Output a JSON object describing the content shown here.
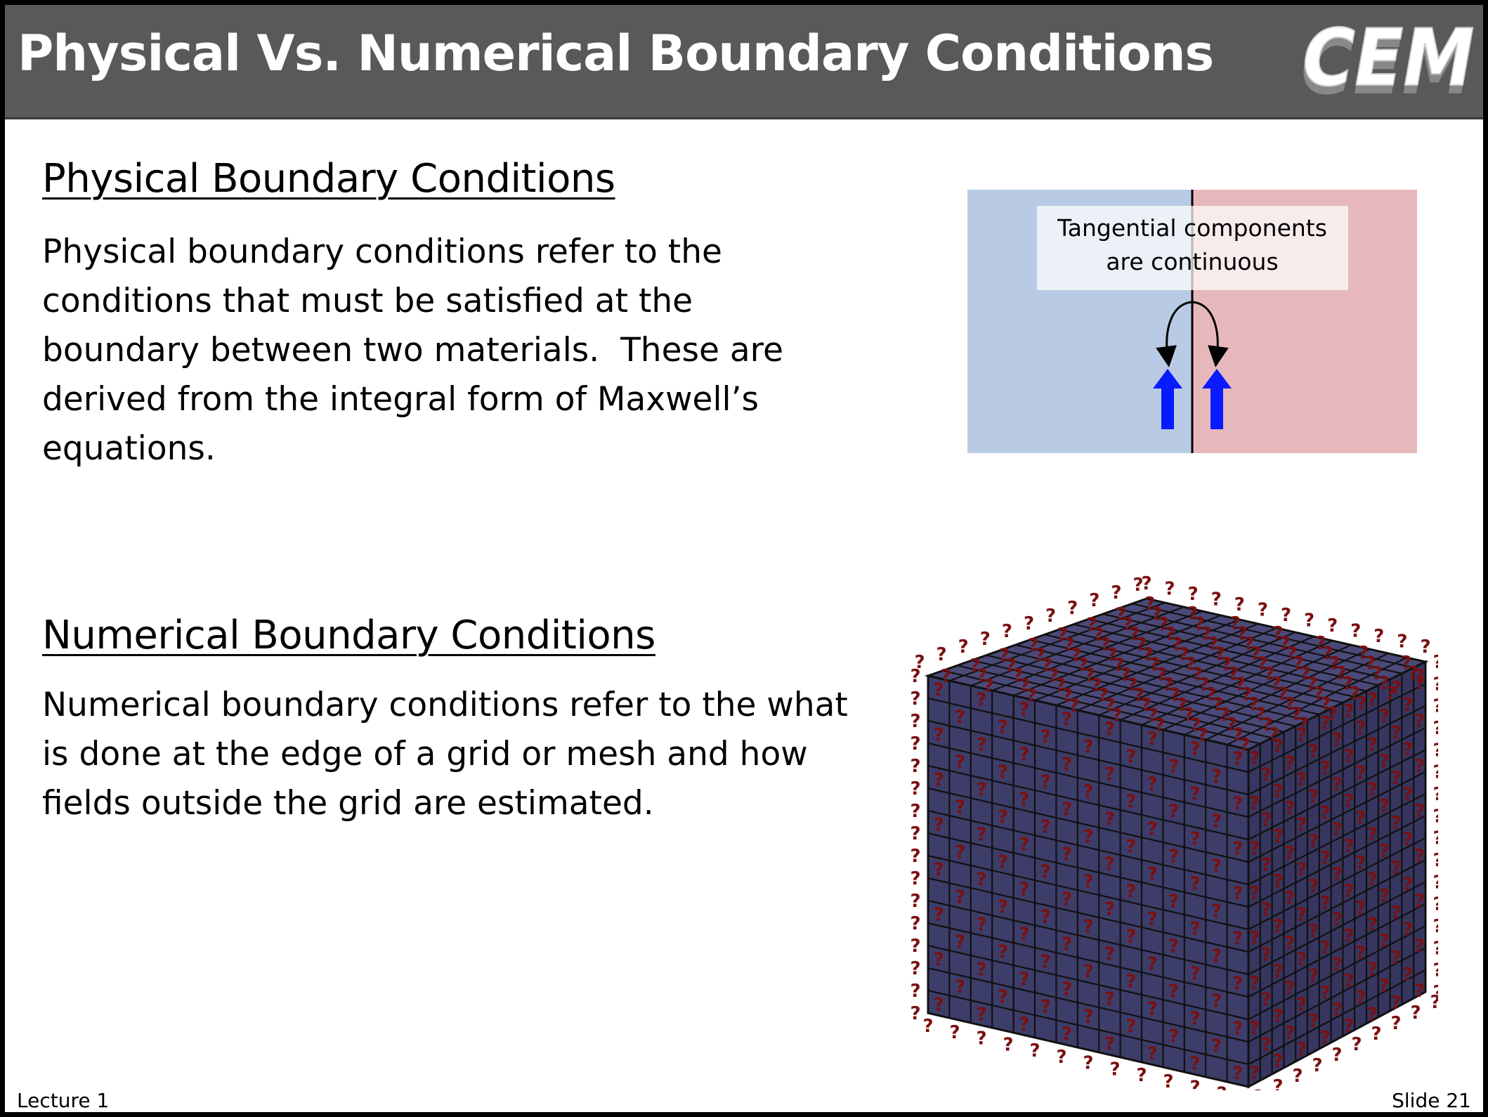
{
  "slide": {
    "title": "Physical Vs. Numerical Boundary Conditions",
    "logo_text": "CEM",
    "footer_left": "Lecture 1",
    "footer_right": "Slide 21"
  },
  "physical": {
    "heading": "Physical Boundary Conditions",
    "lines": [
      "Physical boundary conditions refer to the",
      "conditions that must be satisfied at the",
      "boundary between two materials.  These are",
      "derived from the integral form of Maxwell’s",
      "equations."
    ]
  },
  "numerical": {
    "heading": "Numerical Boundary Conditions",
    "lines": [
      "Numerical boundary conditions refer to the what",
      "is done at the edge of a grid or mesh and how",
      "fields outside the grid are estimated."
    ]
  },
  "diagram": {
    "label_line1": "Tangential components",
    "label_line2": "are continuous",
    "left_color": "#b9cbe4",
    "right_color": "#e7b8bb",
    "arrow_color": "#0a1aff"
  },
  "cube": {
    "face_color": "#4a4a7a",
    "side_color": "#3d3d6a",
    "marker_color": "#7a1010",
    "marker_symbol": "?"
  }
}
